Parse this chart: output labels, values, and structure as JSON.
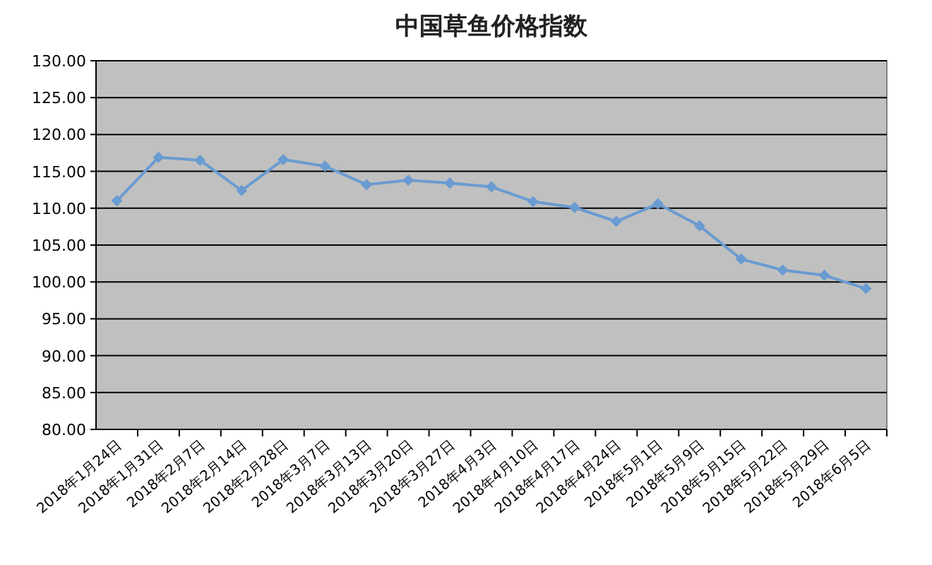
{
  "chart_data": {
    "type": "line",
    "title": "中国草鱼价格指数",
    "categories": [
      "2018年1月24日",
      "2018年1月31日",
      "2018年2月7日",
      "2018年2月14日",
      "2018年2月28日",
      "2018年3月7日",
      "2018年3月13日",
      "2018年3月20日",
      "2018年3月27日",
      "2018年4月3日",
      "2018年4月10日",
      "2018年4月17日",
      "2018年4月24日",
      "2018年5月1日",
      "2018年5月9日",
      "2018年5月15日",
      "2018年5月22日",
      "2018年5月29日",
      "2018年6月5日"
    ],
    "series": [
      {
        "color": "#6a9bd1",
        "values": [
          111.0,
          116.9,
          116.5,
          112.4,
          116.6,
          115.7,
          113.2,
          113.8,
          113.4,
          112.9,
          110.9,
          110.1,
          108.2,
          110.6,
          107.6,
          103.1,
          101.6,
          100.9,
          99.1
        ]
      }
    ],
    "ylim": [
      80,
      130
    ],
    "yticks": [
      {
        "value": 80,
        "label": "80.00"
      },
      {
        "value": 85,
        "label": "85.00"
      },
      {
        "value": 90,
        "label": "90.00"
      },
      {
        "value": 95,
        "label": "95.00"
      },
      {
        "value": 100,
        "label": "100.00"
      },
      {
        "value": 105,
        "label": "105.00"
      },
      {
        "value": 110,
        "label": "110.00"
      },
      {
        "value": 115,
        "label": "115.00"
      },
      {
        "value": 120,
        "label": "120.00"
      },
      {
        "value": 125,
        "label": "125.00"
      },
      {
        "value": 130,
        "label": "130.00"
      }
    ],
    "grid": "y",
    "marker": "diamond",
    "line_style": "solid"
  }
}
